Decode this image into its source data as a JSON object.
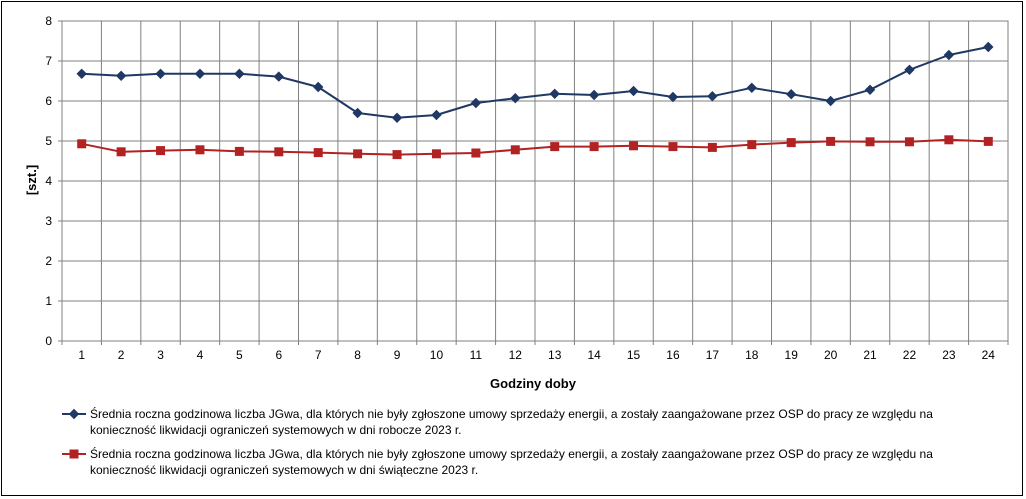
{
  "chart_data": {
    "type": "line",
    "title": "",
    "xlabel": "Godziny doby",
    "ylabel": "[szt.]",
    "ylim": [
      0,
      8
    ],
    "yticks": [
      "0",
      "1",
      "2",
      "3",
      "4",
      "5",
      "6",
      "7",
      "8"
    ],
    "categories": [
      "1",
      "2",
      "3",
      "4",
      "5",
      "6",
      "7",
      "8",
      "9",
      "10",
      "11",
      "12",
      "13",
      "14",
      "15",
      "16",
      "17",
      "18",
      "19",
      "20",
      "21",
      "22",
      "23",
      "24"
    ],
    "grid": true,
    "legend_position": "bottom",
    "series": [
      {
        "name_lines": [
          "Średnia roczna godzinowa liczba JGwa, dla których nie były zgłoszone umowy sprzedaży energii, a zostały zaangażowane przez OSP do pracy ze względu na",
          "konieczność likwidacji ograniczeń systemowych w dni robocze 2023 r."
        ],
        "color": "#1F3864",
        "marker": "diamond",
        "values": [
          6.68,
          6.63,
          6.68,
          6.68,
          6.68,
          6.61,
          6.35,
          5.7,
          5.58,
          5.65,
          5.95,
          6.07,
          6.18,
          6.15,
          6.25,
          6.1,
          6.12,
          6.33,
          6.17,
          6.0,
          6.28,
          6.78,
          7.15,
          7.35
        ]
      },
      {
        "name_lines": [
          "Średnia roczna godzinowa liczba JGwa, dla których nie były zgłoszone umowy sprzedaży energii, a zostały zaangażowane przez OSP do pracy ze względu na",
          "konieczność likwidacji ograniczeń systemowych w dni świąteczne 2023 r."
        ],
        "color": "#B22222",
        "marker": "square",
        "values": [
          4.93,
          4.73,
          4.76,
          4.78,
          4.74,
          4.73,
          4.71,
          4.68,
          4.66,
          4.68,
          4.7,
          4.78,
          4.86,
          4.86,
          4.88,
          4.86,
          4.84,
          4.91,
          4.96,
          4.99,
          4.98,
          4.98,
          5.03,
          4.99
        ]
      }
    ]
  }
}
